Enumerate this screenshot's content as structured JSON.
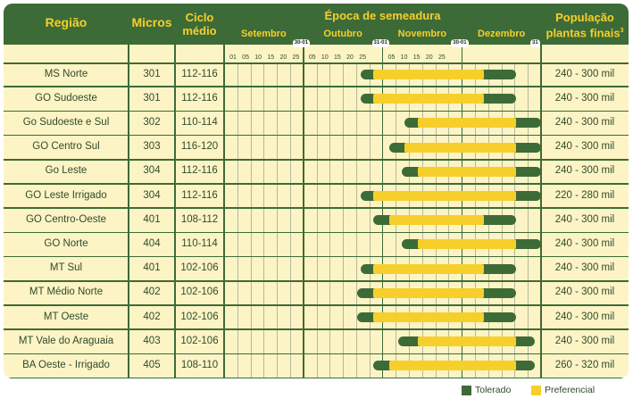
{
  "headers": {
    "regiao": "Região",
    "micros": "Micros",
    "ciclo_l1": "Ciclo",
    "ciclo_l2": "médio",
    "epoca": "Época de semeadura",
    "pop_l1": "População",
    "pop_l2": "plantas finais",
    "pop_sup": "3"
  },
  "months": [
    "Setembro",
    "Outubro",
    "Novembro",
    "Dezembro"
  ],
  "boundary_labels": [
    "30-01",
    "31-01",
    "30-01",
    "31"
  ],
  "day_ticks": [
    "01",
    "05",
    "10",
    "15",
    "20",
    "25",
    "05",
    "10",
    "15",
    "20",
    "25",
    "05",
    "10",
    "15",
    "20",
    "25"
  ],
  "colors": {
    "header_bg": "#3d6b38",
    "header_text": "#f6cf2b",
    "tolerado": "#3d6b38",
    "preferencial": "#f6cf2b",
    "table_bg": "#fdf4c5"
  },
  "rows": [
    {
      "regiao": "MS Norte",
      "micros": "301",
      "ciclo": "112-116",
      "populacao": "240 - 300 mil",
      "tol_start": 0.43,
      "pref_start": 0.47,
      "pref_end": 0.82,
      "tol_end": 0.92
    },
    {
      "regiao": "GO Sudoeste",
      "micros": "301",
      "ciclo": "112-116",
      "populacao": "240 - 300 mil",
      "tol_start": 0.43,
      "pref_start": 0.47,
      "pref_end": 0.82,
      "tol_end": 0.92
    },
    {
      "regiao": "Go Sudoeste e Sul",
      "micros": "302",
      "ciclo": "110-114",
      "populacao": "240 - 300 mil",
      "tol_start": 0.57,
      "pref_start": 0.61,
      "pref_end": 0.92,
      "tol_end": 1.0
    },
    {
      "regiao": "GO Centro Sul",
      "micros": "303",
      "ciclo": "116-120",
      "populacao": "240 - 300 mil",
      "tol_start": 0.52,
      "pref_start": 0.57,
      "pref_end": 0.92,
      "tol_end": 1.0
    },
    {
      "regiao": "Go Leste",
      "micros": "304",
      "ciclo": "112-116",
      "populacao": "240 - 300 mil",
      "tol_start": 0.56,
      "pref_start": 0.61,
      "pref_end": 0.92,
      "tol_end": 1.0
    },
    {
      "regiao": "GO Leste Irrigado",
      "micros": "304",
      "ciclo": "112-116",
      "populacao": "220 - 280 mil",
      "tol_start": 0.43,
      "pref_start": 0.47,
      "pref_end": 0.92,
      "tol_end": 1.0
    },
    {
      "regiao": "GO  Centro-Oeste",
      "micros": "401",
      "ciclo": "108-112",
      "populacao": "240 - 300 mil",
      "tol_start": 0.47,
      "pref_start": 0.52,
      "pref_end": 0.82,
      "tol_end": 0.92
    },
    {
      "regiao": "GO Norte",
      "micros": "404",
      "ciclo": "110-114",
      "populacao": "240 - 300 mil",
      "tol_start": 0.56,
      "pref_start": 0.61,
      "pref_end": 0.92,
      "tol_end": 1.0
    },
    {
      "regiao": "MT Sul",
      "micros": "401",
      "ciclo": "102-106",
      "populacao": "240 - 300 mil",
      "tol_start": 0.43,
      "pref_start": 0.47,
      "pref_end": 0.82,
      "tol_end": 0.92
    },
    {
      "regiao": "MT Médio Norte",
      "micros": "402",
      "ciclo": "102-106",
      "populacao": "240 - 300 mil",
      "tol_start": 0.42,
      "pref_start": 0.47,
      "pref_end": 0.82,
      "tol_end": 0.92
    },
    {
      "regiao": "MT Oeste",
      "micros": "402",
      "ciclo": "102-106",
      "populacao": "240 - 300 mil",
      "tol_start": 0.42,
      "pref_start": 0.47,
      "pref_end": 0.82,
      "tol_end": 0.92
    },
    {
      "regiao": "MT Vale do Araguaia",
      "micros": "403",
      "ciclo": "102-106",
      "populacao": "240 - 300 mil",
      "tol_start": 0.55,
      "pref_start": 0.61,
      "pref_end": 0.92,
      "tol_end": 0.98
    },
    {
      "regiao": "BA Oeste - Irrigado",
      "micros": "405",
      "ciclo": "108-110",
      "populacao": "260 - 320 mil",
      "tol_start": 0.47,
      "pref_start": 0.52,
      "pref_end": 0.92,
      "tol_end": 0.98
    }
  ],
  "legend": {
    "tolerado": "Tolerado",
    "preferencial": "Preferencial"
  }
}
